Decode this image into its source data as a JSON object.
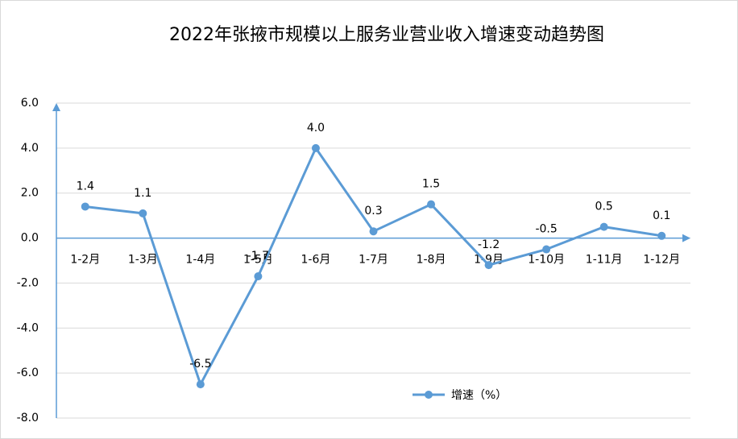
{
  "chart_data": {
    "type": "line",
    "title": "2022年张掖市规模以上服务业营业收入增速变动趋势图",
    "categories": [
      "1-2月",
      "1-3月",
      "1-4月",
      "1-5月",
      "1-6月",
      "1-7月",
      "1-8月",
      "1-9月",
      "1-10月",
      "1-11月",
      "1-12月"
    ],
    "series": [
      {
        "name": "增速（%）",
        "color": "#5b9bd5",
        "values": [
          1.4,
          1.1,
          -6.5,
          -1.7,
          4.0,
          0.3,
          1.5,
          -1.2,
          -0.5,
          0.5,
          0.1
        ],
        "value_labels": [
          "1.4",
          "1.1",
          "-6.5",
          "-1.7",
          "4.0",
          "0.3",
          "1.5",
          "-1.2",
          "-0.5",
          "0.5",
          "0.1"
        ]
      }
    ],
    "ylim": [
      -8,
      6
    ],
    "yticks": [
      {
        "value": 6,
        "label": "6.0"
      },
      {
        "value": 4,
        "label": "4.0"
      },
      {
        "value": 2,
        "label": "2.0"
      },
      {
        "value": 0,
        "label": "0.0"
      },
      {
        "value": -2,
        "label": "-2.0"
      },
      {
        "value": -4,
        "label": "-4.0"
      },
      {
        "value": -6,
        "label": "-6.0"
      },
      {
        "value": -8,
        "label": "-8.0"
      }
    ],
    "grid": true,
    "legend": "bottom"
  }
}
